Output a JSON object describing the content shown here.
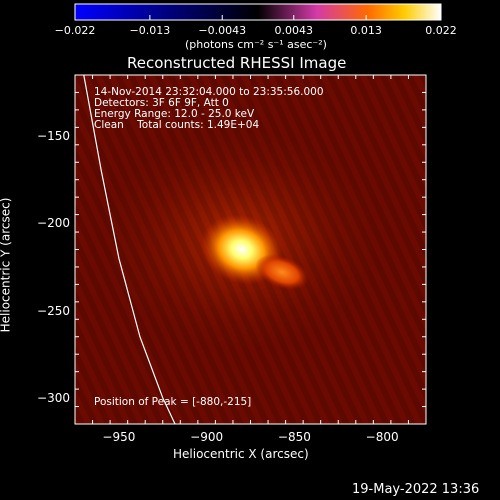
{
  "colorbar": {
    "min_value": -0.022,
    "max_value": 0.022,
    "tick_labels": [
      "−0.022",
      "−0.013",
      "−0.0043",
      "0.0043",
      "0.013",
      "0.022"
    ],
    "unit_label": "(photons cm⁻² s⁻¹ asec⁻²)",
    "gradient_colors": [
      "#0000ff",
      "#000000",
      "#d43aa8",
      "#ff6a00",
      "#ffcc00",
      "#ffffff"
    ]
  },
  "plot": {
    "title": "Reconstructed RHESSI Image",
    "xlabel": "Heliocentric X (arcsec)",
    "ylabel": "Heliocentric Y (arcsec)",
    "x_range": [
      -975,
      -775
    ],
    "y_range": [
      -315,
      -115
    ],
    "x_ticks": [
      -950,
      -900,
      -850,
      -800
    ],
    "y_ticks": [
      -150,
      -200,
      -250,
      -300
    ],
    "x_tick_labels": [
      "−950",
      "−900",
      "−850",
      "−800"
    ],
    "y_tick_labels": [
      "−150",
      "−200",
      "−250",
      "−300"
    ],
    "info_lines": [
      "14-Nov-2014 23:32:04.000 to 23:35:56.000",
      "Detectors: 3F 6F 9F, Att 0",
      "Energy Range: 12.0 - 25.0 keV",
      "Clean    Total counts: 1.49E+04"
    ],
    "peak_text": "Position of Peak = [-880,-215]",
    "peak_position": [
      -880,
      -215
    ],
    "limb_curve": [
      [
        -970,
        -115
      ],
      [
        -960,
        -170
      ],
      [
        -950,
        -220
      ],
      [
        -938,
        -265
      ],
      [
        -925,
        -300
      ],
      [
        -918,
        -315
      ]
    ],
    "image_background_color": "#6a0a00",
    "sources": [
      {
        "x": -880,
        "y": -215,
        "intensity": 1.0
      },
      {
        "x": -857,
        "y": -228,
        "intensity": 0.55
      }
    ]
  },
  "timestamp": "19-May-2022 13:36"
}
